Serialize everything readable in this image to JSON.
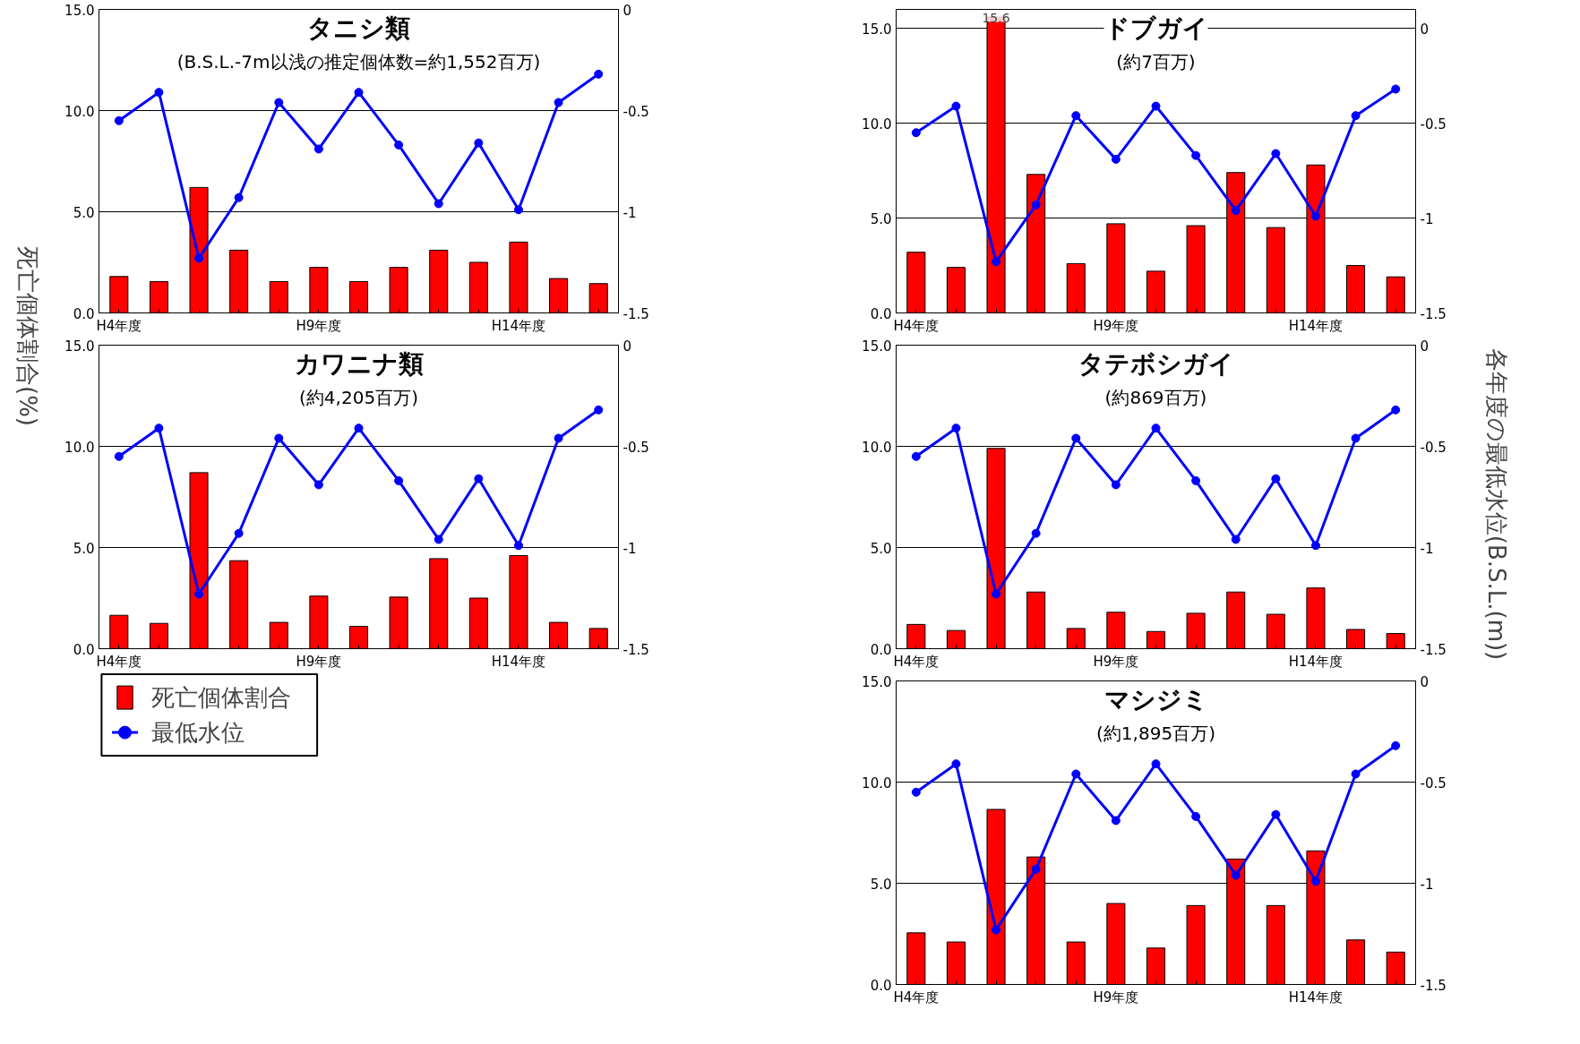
{
  "chart_data": [
    {
      "type": "bar",
      "title": "タニシ類",
      "subtitle": "(B.S.L.-7m以浅の推定個体数=約1,552百万)",
      "ylabel": "死亡個体割合(%)",
      "categories": [
        "H4年度",
        null,
        null,
        null,
        null,
        "H9年度",
        null,
        null,
        null,
        null,
        "H14年度",
        null,
        null
      ],
      "ylim": [
        0,
        15
      ],
      "yticks": [
        {
          "value": 0,
          "label": "0.0"
        },
        {
          "value": 5,
          "label": "5.0"
        },
        {
          "value": 10,
          "label": "10.0"
        },
        {
          "value": 15,
          "label": "15.0"
        }
      ],
      "y2lim": [
        -1.5,
        0
      ],
      "y2ticks": [
        0,
        -0.5,
        -1,
        -1.5
      ],
      "grid": "y",
      "marker": "circle",
      "line_style": "solid",
      "series": [
        {
          "color": "#ff0000",
          "values": [
            1.8,
            1.55,
            6.2,
            3.1,
            1.55,
            2.25,
            1.55,
            2.25,
            3.1,
            2.5,
            3.5,
            1.7,
            1.45
          ]
        },
        {
          "type": "line",
          "axis": "y2",
          "color": "#0000ff",
          "values": [
            -0.55,
            -0.41,
            -1.23,
            -0.93,
            -0.46,
            -0.69,
            -0.41,
            -0.67,
            -0.96,
            -0.66,
            -0.99,
            -0.46,
            -0.32
          ]
        }
      ]
    },
    {
      "type": "bar",
      "title": "カワニナ類",
      "subtitle": "(約4,205百万)",
      "legend": "bottom",
      "categories": [
        "H4年度",
        null,
        null,
        null,
        null,
        "H9年度",
        null,
        null,
        null,
        null,
        "H14年度",
        null,
        null
      ],
      "ylim": [
        0,
        15
      ],
      "yticks": [
        {
          "value": 0,
          "label": "0.0"
        },
        {
          "value": 5,
          "label": "5.0"
        },
        {
          "value": 10,
          "label": "10.0"
        },
        {
          "value": 15,
          "label": "15.0"
        }
      ],
      "y2lim": [
        -1.5,
        0
      ],
      "y2ticks": [
        0,
        -0.5,
        -1,
        -1.5
      ],
      "grid": "y",
      "marker": "circle",
      "line_style": "solid",
      "series": [
        {
          "name": "死亡個体割合",
          "color": "#ff0000",
          "values": [
            1.65,
            1.25,
            8.7,
            4.35,
            1.3,
            2.6,
            1.1,
            2.55,
            4.45,
            2.5,
            4.6,
            1.3,
            1.0
          ]
        },
        {
          "name": "最低水位",
          "type": "line",
          "axis": "y2",
          "color": "#0000ff",
          "values": [
            -0.55,
            -0.41,
            -1.23,
            -0.93,
            -0.46,
            -0.69,
            -0.41,
            -0.67,
            -0.96,
            -0.66,
            -0.99,
            -0.46,
            -0.32
          ]
        }
      ]
    },
    {
      "type": "bar",
      "title": "ドブガイ",
      "subtitle": "(約7百万)",
      "y2label": "各年度の最低水位(B.S.L.(m))",
      "categories": [
        "H4年度",
        null,
        null,
        null,
        null,
        "H9年度",
        null,
        null,
        null,
        null,
        "H14年度",
        null,
        null
      ],
      "ylim": [
        0,
        16
      ],
      "yticks": [
        {
          "value": 0,
          "label": "0.0"
        },
        {
          "value": 5,
          "label": "5.0"
        },
        {
          "value": 10,
          "label": "10.0"
        },
        {
          "value": 15,
          "label": "15.0"
        }
      ],
      "y2lim": [
        -1.5,
        0.1
      ],
      "y2ticks": [
        0,
        -0.5,
        -1,
        -1.5
      ],
      "grid": "y",
      "marker": "circle",
      "line_style": "solid",
      "series": [
        {
          "color": "#ff0000",
          "values": [
            3.2,
            2.4,
            15.6,
            7.3,
            2.6,
            4.7,
            2.2,
            4.6,
            7.4,
            4.5,
            7.8,
            2.5,
            1.9
          ],
          "value_labels": [
            null,
            null,
            "15.6",
            null,
            null,
            null,
            null,
            null,
            null,
            null,
            null,
            null,
            null
          ]
        },
        {
          "type": "line",
          "axis": "y2",
          "color": "#0000ff",
          "values": [
            -0.55,
            -0.41,
            -1.23,
            -0.93,
            -0.46,
            -0.69,
            -0.41,
            -0.67,
            -0.96,
            -0.66,
            -0.99,
            -0.46,
            -0.32
          ]
        }
      ]
    },
    {
      "type": "bar",
      "title": "タテボシガイ",
      "subtitle": "(約869百万)",
      "categories": [
        "H4年度",
        null,
        null,
        null,
        null,
        "H9年度",
        null,
        null,
        null,
        null,
        "H14年度",
        null,
        null
      ],
      "ylim": [
        0,
        15
      ],
      "yticks": [
        {
          "value": 0,
          "label": "0.0"
        },
        {
          "value": 5,
          "label": "5.0"
        },
        {
          "value": 10,
          "label": "10.0"
        },
        {
          "value": 15,
          "label": "15.0"
        }
      ],
      "y2lim": [
        -1.5,
        0
      ],
      "y2ticks": [
        0,
        -0.5,
        -1,
        -1.5
      ],
      "grid": "y",
      "marker": "circle",
      "line_style": "solid",
      "series": [
        {
          "color": "#ff0000",
          "values": [
            1.2,
            0.9,
            9.9,
            2.8,
            1.0,
            1.8,
            0.85,
            1.75,
            2.8,
            1.7,
            3.0,
            0.95,
            0.75
          ]
        },
        {
          "type": "line",
          "axis": "y2",
          "color": "#0000ff",
          "values": [
            -0.55,
            -0.41,
            -1.23,
            -0.93,
            -0.46,
            -0.69,
            -0.41,
            -0.67,
            -0.96,
            -0.66,
            -0.99,
            -0.46,
            -0.32
          ]
        }
      ]
    },
    {
      "type": "bar",
      "title": "マシジミ",
      "subtitle": "(約1,895百万)",
      "categories": [
        "H4年度",
        null,
        null,
        null,
        null,
        "H9年度",
        null,
        null,
        null,
        null,
        "H14年度",
        null,
        null
      ],
      "ylim": [
        0,
        15
      ],
      "yticks": [
        {
          "value": 0,
          "label": "0.0"
        },
        {
          "value": 5,
          "label": "5.0"
        },
        {
          "value": 10,
          "label": "10.0"
        },
        {
          "value": 15,
          "label": "15.0"
        }
      ],
      "y2lim": [
        -1.5,
        0
      ],
      "y2ticks": [
        0,
        -0.5,
        -1,
        -1.5
      ],
      "grid": "y",
      "marker": "circle",
      "line_style": "solid",
      "series": [
        {
          "color": "#ff0000",
          "values": [
            2.55,
            2.1,
            8.65,
            6.3,
            2.1,
            4.0,
            1.8,
            3.9,
            6.2,
            3.9,
            6.6,
            2.2,
            1.6
          ]
        },
        {
          "type": "line",
          "axis": "y2",
          "color": "#0000ff",
          "values": [
            -0.55,
            -0.41,
            -1.23,
            -0.93,
            -0.46,
            -0.69,
            -0.41,
            -0.67,
            -0.96,
            -0.66,
            -0.99,
            -0.46,
            -0.32
          ]
        }
      ]
    }
  ]
}
